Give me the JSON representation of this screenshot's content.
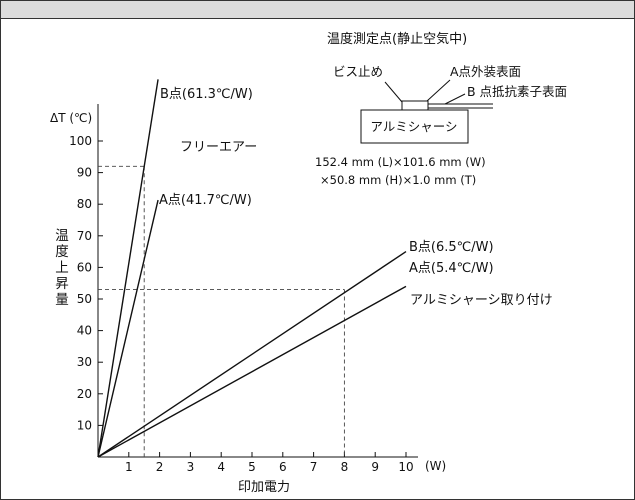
{
  "chart_data": {
    "type": "line",
    "title": "",
    "ylabel": "ΔT (℃)",
    "ylabel_vertical": "温度上昇量",
    "xlabel": "印加電力",
    "x_unit": "(W)",
    "xlim": [
      0,
      10.5
    ],
    "ylim": [
      0,
      110
    ],
    "x_ticks": [
      "1",
      "2",
      "3",
      "4",
      "5",
      "6",
      "7",
      "8",
      "9",
      "10"
    ],
    "y_ticks": [
      "10",
      "20",
      "30",
      "40",
      "50",
      "60",
      "70",
      "80",
      "90",
      "100"
    ],
    "series": [
      {
        "name": "B点(61.3℃/W)",
        "x": [
          0,
          1.95
        ],
        "y": [
          0,
          119.5
        ]
      },
      {
        "name": "A点(41.7℃/W)",
        "x": [
          0,
          1.95
        ],
        "y": [
          0,
          81.3
        ]
      },
      {
        "name": "B点(6.5℃/W)",
        "x": [
          0,
          10
        ],
        "y": [
          0,
          65
        ]
      },
      {
        "name": "A点(5.4℃/W)",
        "x": [
          0,
          10
        ],
        "y": [
          0,
          54
        ]
      }
    ],
    "reference_lines": [
      {
        "x": 1.5,
        "y": 92
      },
      {
        "x": 8,
        "y": 53
      }
    ],
    "annotations": {
      "free_air": "フリーエアー",
      "aluminum_mount": "アルミシャーシ取り付け"
    },
    "colors": {
      "line": "#111111",
      "guide": "#444444",
      "header": "#dcdcdc"
    }
  },
  "inset": {
    "title": "温度測定点(静止空気中)",
    "screw_label": "ビス止め",
    "point_a_label": "A点外装表面",
    "point_b_label": "B 点抵抗素子表面",
    "chassis_label": "アルミシャーシ",
    "dimensions_line1": "152.4 mm (L)×101.6 mm (W)",
    "dimensions_line2": "×50.8 mm (H)×1.0 mm (T)"
  }
}
